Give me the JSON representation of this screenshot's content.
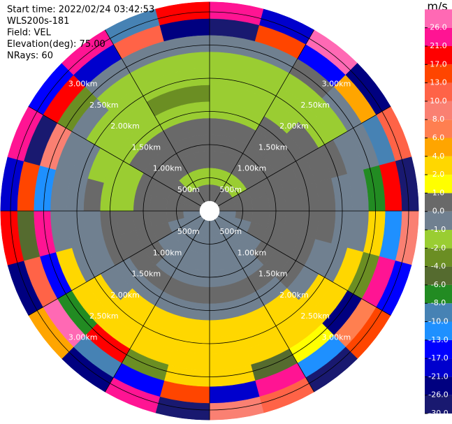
{
  "chart_data": {
    "type": "ppi",
    "annotations": [
      "Start time: 2022/02/24 03:42:53",
      "WLS200s-181",
      "Field: VEL",
      "Elevation(deg): 75.00",
      "NRays: 60"
    ],
    "colorbar": {
      "label": "m/s",
      "bounds": [
        -30,
        -26,
        -21,
        -17,
        -13,
        -10,
        -8,
        -6,
        -4,
        -2,
        -1,
        0,
        1,
        2,
        4,
        6,
        8,
        10,
        13,
        17,
        21,
        26,
        30
      ],
      "colors": [
        "#191970",
        "#000080",
        "#0000cd",
        "#0000ff",
        "#1e90ff",
        "#4682b4",
        "#228b22",
        "#556b2f",
        "#6b8e23",
        "#9acd32",
        "#708090",
        "#696969",
        "#ffff00",
        "#ffd700",
        "#ffa500",
        "#ff7f50",
        "#fa8072",
        "#ff6347",
        "#ff4500",
        "#ff0000",
        "#ff1493",
        "#ff69b4"
      ],
      "ticks": [
        {
          "value": -30,
          "label": "-30.0"
        },
        {
          "value": -26,
          "label": "-26.0"
        },
        {
          "value": -21,
          "label": "-21.0"
        },
        {
          "value": -17,
          "label": "-17.0"
        },
        {
          "value": -13,
          "label": "-13.0"
        },
        {
          "value": -10,
          "label": "-10.0"
        },
        {
          "value": -8,
          "label": "-8.0"
        },
        {
          "value": -6,
          "label": "-6.0"
        },
        {
          "value": -4,
          "label": "-4.0"
        },
        {
          "value": -2,
          "label": "-2.0"
        },
        {
          "value": -1,
          "label": "-1.0"
        },
        {
          "value": 0,
          "label": "0.0"
        },
        {
          "value": 1,
          "label": "1.0"
        },
        {
          "value": 2,
          "label": "2.0"
        },
        {
          "value": 4,
          "label": "4.0"
        },
        {
          "value": 6,
          "label": "6.0"
        },
        {
          "value": 8,
          "label": "8.0"
        },
        {
          "value": 10,
          "label": "10.0"
        },
        {
          "value": 13,
          "label": "13.0"
        },
        {
          "value": 17,
          "label": "17.0"
        },
        {
          "value": 21,
          "label": "21.0"
        },
        {
          "value": 26,
          "label": "26.0"
        }
      ]
    },
    "rings": [
      {
        "value": 0.5,
        "label": "500m"
      },
      {
        "value": 1,
        "label": "1.00km"
      },
      {
        "value": 1.5,
        "label": "1.50km"
      },
      {
        "value": 2,
        "label": "2.00km"
      },
      {
        "value": 2.5,
        "label": "2.50km"
      },
      {
        "value": 3,
        "label": "3.00km"
      }
    ],
    "azimuths": [
      0,
      15,
      30,
      45,
      60,
      75,
      90,
      105,
      120,
      135,
      150,
      165,
      180,
      195,
      210,
      225,
      240,
      255,
      270,
      285,
      300,
      315,
      330,
      345
    ],
    "range_bins": [
      0.15,
      0.4,
      0.65,
      0.9,
      1.15,
      1.4,
      1.65,
      1.9,
      2.15,
      2.4,
      2.65,
      2.9,
      3.15
    ],
    "values": [
      [
        0.5,
        -1.5,
        0.5,
        0.5,
        0.5,
        -1.5,
        -1.5,
        -1.5,
        -1.5,
        -0.5,
        -28,
        23
      ],
      [
        0.5,
        -1.5,
        0.5,
        0.5,
        0.5,
        -1.5,
        -1.5,
        -1.5,
        -1.5,
        -0.5,
        15,
        -19
      ],
      [
        0.5,
        -1.5,
        0.5,
        0.5,
        0.5,
        0.5,
        -1.5,
        -1.5,
        -1.5,
        0.5,
        -15,
        27
      ],
      [
        0.5,
        -1.5,
        0.5,
        0.5,
        0.5,
        0.5,
        0.5,
        -1.5,
        -1.5,
        -0.5,
        5,
        -23
      ],
      [
        0.5,
        0.5,
        0.5,
        0.5,
        0.5,
        0.5,
        0.5,
        0.5,
        -0.5,
        -0.5,
        -9,
        11
      ],
      [
        0.5,
        0.5,
        0.5,
        0.5,
        0.5,
        0.5,
        0.5,
        -0.5,
        -0.5,
        -7,
        19,
        -27
      ],
      [
        -0.5,
        0.5,
        0.5,
        0.5,
        0.5,
        0.5,
        0.5,
        -0.5,
        -0.5,
        3,
        -12,
        9
      ],
      [
        -0.5,
        -0.5,
        0.5,
        0.5,
        0.5,
        0.5,
        -0.5,
        -0.5,
        3,
        -3,
        24,
        -16
      ],
      [
        -0.5,
        -0.5,
        -0.5,
        0.5,
        0.5,
        0.5,
        -0.5,
        3,
        3,
        -24,
        7,
        14
      ],
      [
        -0.5,
        -0.5,
        -0.5,
        -0.5,
        0.5,
        -0.5,
        3,
        3,
        3,
        1.5,
        -11,
        -29
      ],
      [
        -0.5,
        -0.5,
        -0.5,
        -0.5,
        0.5,
        -0.5,
        3,
        3,
        3,
        -5,
        22,
        12
      ],
      [
        -0.5,
        -0.5,
        -0.5,
        -0.5,
        0.5,
        -0.5,
        3,
        3,
        3,
        3,
        -20,
        9
      ],
      [
        -0.5,
        -0.5,
        -0.5,
        -0.5,
        0.5,
        -0.5,
        3,
        3,
        3,
        3,
        16,
        -27
      ],
      [
        -0.5,
        -0.5,
        -0.5,
        -0.5,
        0.5,
        -0.5,
        3,
        3,
        3,
        -2.5,
        -14,
        25
      ],
      [
        -0.5,
        -0.5,
        -0.5,
        -0.5,
        0.5,
        -0.5,
        3,
        3,
        3,
        19,
        -9,
        -22
      ],
      [
        -0.5,
        -0.5,
        -0.5,
        0.5,
        0.5,
        -0.5,
        -0.5,
        3,
        3,
        -7,
        27,
        5
      ],
      [
        -0.5,
        -0.5,
        0.5,
        0.5,
        0.5,
        0.5,
        -0.5,
        -0.5,
        3,
        -16,
        11,
        -25
      ],
      [
        -0.5,
        0.5,
        0.5,
        0.5,
        0.5,
        0.5,
        -0.5,
        -0.5,
        -0.5,
        22,
        -5,
        18
      ],
      [
        0.5,
        0.5,
        0.5,
        0.5,
        -1.5,
        -1.5,
        0.5,
        -0.5,
        -0.5,
        -11,
        14,
        -18
      ],
      [
        0.5,
        0.5,
        0.5,
        0.5,
        -1.5,
        -1.5,
        -1.5,
        -0.5,
        -0.5,
        9,
        -28,
        23
      ],
      [
        0.5,
        0.5,
        0.5,
        0.5,
        0.5,
        -1.5,
        -1.5,
        -1.5,
        -0.5,
        -2.5,
        18,
        -14
      ],
      [
        0.5,
        -1.5,
        0.5,
        0.5,
        0.5,
        -1.5,
        -1.5,
        -1.5,
        -1.5,
        -0.5,
        -21,
        25
      ],
      [
        0.5,
        -1.5,
        0.5,
        0.5,
        0.5,
        -1.5,
        -3,
        -1.5,
        -1.5,
        -0.5,
        12,
        -9
      ],
      [
        0.5,
        -1.5,
        0.5,
        0.5,
        0.5,
        -1.5,
        -3,
        -1.5,
        -1.5,
        -0.5,
        -26,
        20
      ]
    ]
  }
}
